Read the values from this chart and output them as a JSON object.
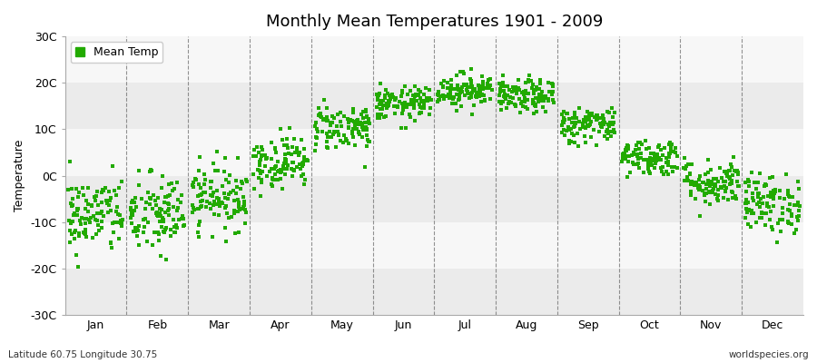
{
  "title": "Monthly Mean Temperatures 1901 - 2009",
  "ylabel": "Temperature",
  "subtitle_left": "Latitude 60.75 Longitude 30.75",
  "subtitle_right": "worldspecies.org",
  "ylim": [
    -30,
    30
  ],
  "yticks": [
    -30,
    -20,
    -10,
    0,
    10,
    20,
    30
  ],
  "ytick_labels": [
    "-30C",
    "-20C",
    "-10C",
    "0C",
    "10C",
    "20C",
    "30C"
  ],
  "month_labels": [
    "Jan",
    "Feb",
    "Mar",
    "Apr",
    "May",
    "Jun",
    "Jul",
    "Aug",
    "Sep",
    "Oct",
    "Nov",
    "Dec"
  ],
  "dot_color": "#22aa00",
  "dot_size": 5,
  "fig_bg_color": "#ffffff",
  "plot_bg_color": "#ffffff",
  "band_colors": [
    "#ebebeb",
    "#f7f7f7"
  ],
  "legend_label": "Mean Temp",
  "title_fontsize": 13,
  "label_fontsize": 9,
  "tick_fontsize": 9,
  "mean_temps": [
    -8.5,
    -8.5,
    -4.5,
    3.0,
    10.5,
    15.5,
    18.5,
    17.0,
    11.0,
    4.0,
    -1.5,
    -6.0
  ],
  "std_temps": [
    4.2,
    4.5,
    3.5,
    2.8,
    2.5,
    1.8,
    1.8,
    1.8,
    2.0,
    2.0,
    2.5,
    3.2
  ],
  "n_years": 109,
  "seed": 42,
  "vline_color": "#666666",
  "spine_color": "#aaaaaa"
}
